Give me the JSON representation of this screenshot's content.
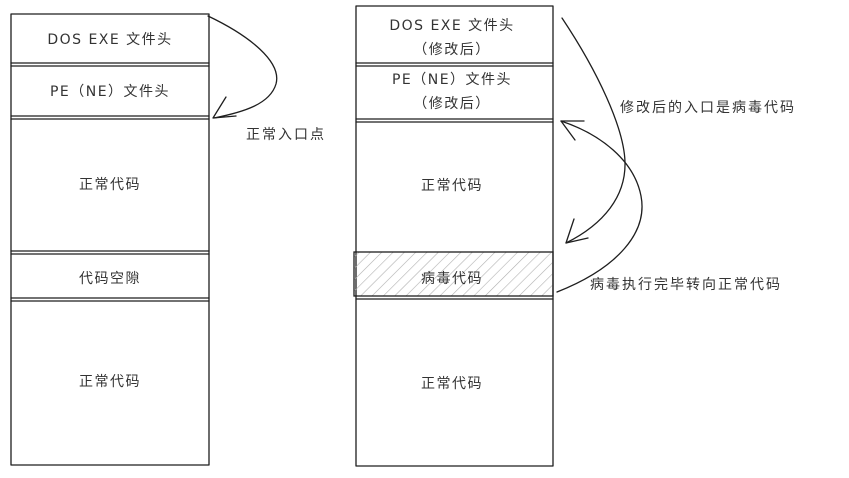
{
  "left_column": {
    "header_dos": "DOS EXE 文件头",
    "header_pe": "PE（NE）文件头",
    "code_top": "正常代码",
    "gap": "代码空隙",
    "code_bottom": "正常代码"
  },
  "right_column": {
    "header_dos_line1": "DOS EXE 文件头",
    "header_dos_line2": "（修改后）",
    "header_pe_line1": "PE（NE）文件头",
    "header_pe_line2": "（修改后）",
    "code_top": "正常代码",
    "virus": "病毒代码",
    "code_bottom": "正常代码"
  },
  "annotations": {
    "normal_entry": "正常入口点",
    "modified_entry": "修改后的入口是病毒代码",
    "virus_return": "病毒执行完毕转向正常代码"
  }
}
